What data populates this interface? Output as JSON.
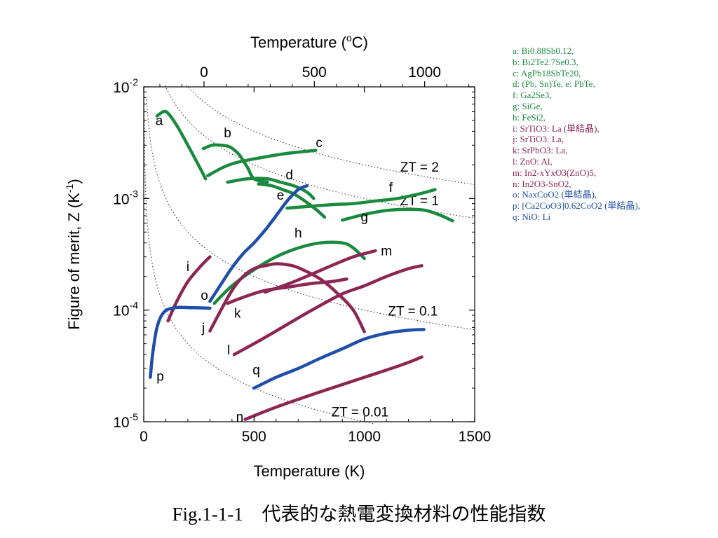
{
  "chart_data": {
    "type": "line",
    "title": "",
    "xlabel": "Temperature (K)",
    "ylabel_parts": [
      "Figure of merit, Z (K",
      "-1",
      ")"
    ],
    "top_axis_label_parts": [
      "Temperature (",
      "o",
      "C)"
    ],
    "x_range": [
      0,
      1500
    ],
    "y_range": [
      1e-05,
      0.01
    ],
    "y_scale": "log",
    "grid": false,
    "x_ticks": [
      {
        "value": 0,
        "label": "0"
      },
      {
        "value": 500,
        "label": "500"
      },
      {
        "value": 1000,
        "label": "1000"
      },
      {
        "value": 1500,
        "label": "1500"
      }
    ],
    "top_ticks": [
      {
        "value": 0,
        "label": "0"
      },
      {
        "value": 500,
        "label": "500"
      },
      {
        "value": 1000,
        "label": "1000"
      }
    ],
    "y_ticks": [
      {
        "value": 0.01,
        "base": "10",
        "exp": "-2"
      },
      {
        "value": 0.001,
        "base": "10",
        "exp": "-3"
      },
      {
        "value": 0.0001,
        "base": "10",
        "exp": "-4"
      },
      {
        "value": 1e-05,
        "base": "10",
        "exp": "-5"
      }
    ],
    "iso_lines": [
      {
        "zt": 2,
        "label": "ZT = 2",
        "label_x": 1250
      },
      {
        "zt": 1,
        "label": "ZT = 1",
        "label_x": 1250
      },
      {
        "zt": 0.1,
        "label": "ZT = 0.1",
        "label_x": 1220
      },
      {
        "zt": 0.01,
        "label": "ZT = 0.01",
        "label_x": 980
      }
    ],
    "series_colors": {
      "green": "#1a8a3e",
      "blue": "#1f4fa8",
      "purple": "#8c2655"
    },
    "series": [
      {
        "key": "a",
        "color": "green",
        "label_pos": [
          70,
          0.0049
        ],
        "points": [
          [
            60,
            0.0055
          ],
          [
            90,
            0.006
          ],
          [
            110,
            0.0058
          ],
          [
            150,
            0.0045
          ],
          [
            200,
            0.003
          ],
          [
            260,
            0.0018
          ],
          [
            280,
            0.0015
          ]
        ]
      },
      {
        "key": "b",
        "color": "green",
        "label_pos": [
          380,
          0.0038
        ],
        "points": [
          [
            270,
            0.0028
          ],
          [
            310,
            0.003
          ],
          [
            350,
            0.003
          ],
          [
            390,
            0.0029
          ],
          [
            430,
            0.0025
          ],
          [
            470,
            0.0019
          ],
          [
            500,
            0.0015
          ],
          [
            560,
            0.0014
          ]
        ]
      },
      {
        "key": "c",
        "color": "green",
        "label_pos": [
          795,
          0.0031
        ],
        "points": [
          [
            290,
            0.0016
          ],
          [
            360,
            0.0019
          ],
          [
            420,
            0.0021
          ],
          [
            520,
            0.0023
          ],
          [
            630,
            0.0025
          ],
          [
            700,
            0.0026
          ],
          [
            780,
            0.0027
          ]
        ]
      },
      {
        "key": "d",
        "color": "green",
        "label_pos": [
          660,
          0.0016
        ],
        "points": [
          [
            380,
            0.0014
          ],
          [
            470,
            0.0015
          ],
          [
            560,
            0.0015
          ],
          [
            620,
            0.0014
          ],
          [
            680,
            0.0013
          ],
          [
            720,
            0.0012
          ],
          [
            750,
            0.0011
          ],
          [
            770,
            0.001
          ]
        ]
      },
      {
        "key": "e",
        "color": "green",
        "label_pos": [
          620,
          0.00105
        ],
        "points": [
          [
            520,
            0.00135
          ],
          [
            580,
            0.0013
          ],
          [
            630,
            0.0012
          ],
          [
            680,
            0.0011
          ],
          [
            730,
            0.00095
          ],
          [
            780,
            0.0008
          ],
          [
            820,
            0.00068
          ]
        ]
      },
      {
        "key": "f",
        "color": "green",
        "label_pos": [
          1120,
          0.00123
        ],
        "points": [
          [
            650,
            0.00082
          ],
          [
            750,
            0.00085
          ],
          [
            850,
            0.00088
          ],
          [
            950,
            0.0009
          ],
          [
            1050,
            0.00095
          ],
          [
            1150,
            0.001
          ],
          [
            1250,
            0.0011
          ],
          [
            1320,
            0.0012
          ]
        ]
      },
      {
        "key": "g",
        "color": "green",
        "label_pos": [
          1000,
          0.00067
        ],
        "points": [
          [
            900,
            0.00064
          ],
          [
            1000,
            0.00072
          ],
          [
            1100,
            0.00078
          ],
          [
            1200,
            0.0008
          ],
          [
            1280,
            0.00078
          ],
          [
            1350,
            0.0007
          ],
          [
            1400,
            0.00063
          ]
        ]
      },
      {
        "key": "h",
        "color": "green",
        "label_pos": [
          700,
          0.00048
        ],
        "points": [
          [
            320,
            0.000115
          ],
          [
            400,
            0.000165
          ],
          [
            500,
            0.00023
          ],
          [
            600,
            0.0003
          ],
          [
            700,
            0.00036
          ],
          [
            800,
            0.0004
          ],
          [
            900,
            0.0004
          ],
          [
            950,
            0.00036
          ],
          [
            1000,
            0.00029
          ]
        ]
      },
      {
        "key": "i",
        "color": "purple",
        "label_pos": [
          200,
          0.00024
        ],
        "points": [
          [
            110,
            8e-05
          ],
          [
            150,
            0.00012
          ],
          [
            200,
            0.00018
          ],
          [
            260,
            0.00025
          ],
          [
            300,
            0.0003
          ]
        ]
      },
      {
        "key": "j",
        "color": "purple",
        "label_pos": [
          270,
          6.8e-05
        ],
        "points": [
          [
            300,
            6.5e-05
          ],
          [
            350,
            0.0001
          ],
          [
            400,
            0.00015
          ],
          [
            450,
            0.0002
          ],
          [
            500,
            0.000235
          ],
          [
            550,
            0.00025
          ],
          [
            600,
            0.00026
          ],
          [
            650,
            0.000255
          ],
          [
            700,
            0.00024
          ],
          [
            800,
            0.00019
          ],
          [
            880,
            0.00014
          ],
          [
            950,
            0.0001
          ],
          [
            1000,
            6.4e-05
          ]
        ]
      },
      {
        "key": "k",
        "color": "purple",
        "label_pos": [
          425,
          9.2e-05
        ],
        "points": [
          [
            380,
            0.000115
          ],
          [
            450,
            0.00013
          ],
          [
            550,
            0.00015
          ],
          [
            650,
            0.00016
          ],
          [
            750,
            0.000172
          ],
          [
            850,
            0.00018
          ],
          [
            920,
            0.00019
          ]
        ]
      },
      {
        "key": "l",
        "color": "purple",
        "label_pos": [
          385,
          4.3e-05
        ],
        "points": [
          [
            410,
            4e-05
          ],
          [
            500,
            5e-05
          ],
          [
            600,
            6.5e-05
          ],
          [
            700,
            8.5e-05
          ],
          [
            800,
            0.00011
          ],
          [
            900,
            0.00014
          ],
          [
            1000,
            0.000165
          ],
          [
            1100,
            0.0002
          ],
          [
            1200,
            0.000235
          ],
          [
            1260,
            0.00025
          ]
        ]
      },
      {
        "key": "m",
        "color": "purple",
        "label_pos": [
          1100,
          0.000333
        ],
        "points": [
          [
            550,
            0.000145
          ],
          [
            650,
            0.00017
          ],
          [
            750,
            0.000205
          ],
          [
            850,
            0.00025
          ],
          [
            950,
            0.0003
          ],
          [
            1050,
            0.00034
          ]
        ]
      },
      {
        "key": "n",
        "color": "purple",
        "label_pos": [
          435,
          1.08e-05
        ],
        "points": [
          [
            460,
            1.05e-05
          ],
          [
            600,
            1.35e-05
          ],
          [
            800,
            1.85e-05
          ],
          [
            1000,
            2.5e-05
          ],
          [
            1100,
            2.9e-05
          ],
          [
            1200,
            3.4e-05
          ],
          [
            1260,
            3.8e-05
          ]
        ]
      },
      {
        "key": "o",
        "color": "blue",
        "label_pos": [
          275,
          0.000133
        ],
        "points": [
          [
            300,
            0.00012
          ],
          [
            350,
            0.00017
          ],
          [
            400,
            0.00024
          ],
          [
            450,
            0.00032
          ],
          [
            500,
            0.0004
          ],
          [
            550,
            0.00052
          ],
          [
            600,
            0.0007
          ],
          [
            650,
            0.00095
          ],
          [
            700,
            0.0012
          ],
          [
            740,
            0.0013
          ]
        ]
      },
      {
        "key": "p",
        "color": "blue",
        "label_pos": [
          75,
          2.5e-05
        ],
        "points": [
          [
            30,
            2.5e-05
          ],
          [
            40,
            4e-05
          ],
          [
            60,
            7e-05
          ],
          [
            90,
            9.5e-05
          ],
          [
            140,
            0.000105
          ],
          [
            220,
            0.000105
          ],
          [
            300,
            0.000104
          ]
        ]
      },
      {
        "key": "q",
        "color": "blue",
        "label_pos": [
          510,
          2.85e-05
        ],
        "points": [
          [
            500,
            2e-05
          ],
          [
            600,
            2.5e-05
          ],
          [
            700,
            3e-05
          ],
          [
            800,
            3.7e-05
          ],
          [
            900,
            4.5e-05
          ],
          [
            1000,
            5.5e-05
          ],
          [
            1100,
            6.2e-05
          ],
          [
            1200,
            6.6e-05
          ],
          [
            1270,
            6.7e-05
          ]
        ]
      }
    ]
  },
  "legend": [
    {
      "text": "a: Bi0.88Sb0.12,",
      "color": "#1a8a3e"
    },
    {
      "text": "b: Bi2Te2.7Se0.3,",
      "color": "#1a8a3e"
    },
    {
      "text": "c: AgPb18SbTe20,",
      "color": "#1a8a3e"
    },
    {
      "text": "d: (Pb, Sn)Te, e: PbTe,",
      "color": "#1a8a3e"
    },
    {
      "text": "f: Ga2Se3,",
      "color": "#1a8a3e"
    },
    {
      "text": "g: SiGe,",
      "color": "#1a8a3e"
    },
    {
      "text": "h: FeSi2,",
      "color": "#1a8a3e"
    },
    {
      "text": "i: SrTiO3: La (単結晶),",
      "color": "#8c2655"
    },
    {
      "text": "j: SrTiO3: La,",
      "color": "#8c2655"
    },
    {
      "text": "k: SrPbO3: La,",
      "color": "#8c2655"
    },
    {
      "text": "l: ZnO: Al,",
      "color": "#8c2655"
    },
    {
      "text": "m: In2-xYxO3(ZnO)5,",
      "color": "#8c2655"
    },
    {
      "text": "n: In2O3-SnO2,",
      "color": "#8c2655"
    },
    {
      "text": "o: NaxCoO2 (単結晶),",
      "color": "#1f4fa8"
    },
    {
      "text": "p: [Ca2CoO3]0.62CoO2 (単結晶),",
      "color": "#1f4fa8"
    },
    {
      "text": "q: NiO: Li",
      "color": "#1f4fa8"
    }
  ],
  "caption": {
    "figure_no": "Fig.1-1-1",
    "text": "代表的な熱電変換材料の性能指数"
  }
}
